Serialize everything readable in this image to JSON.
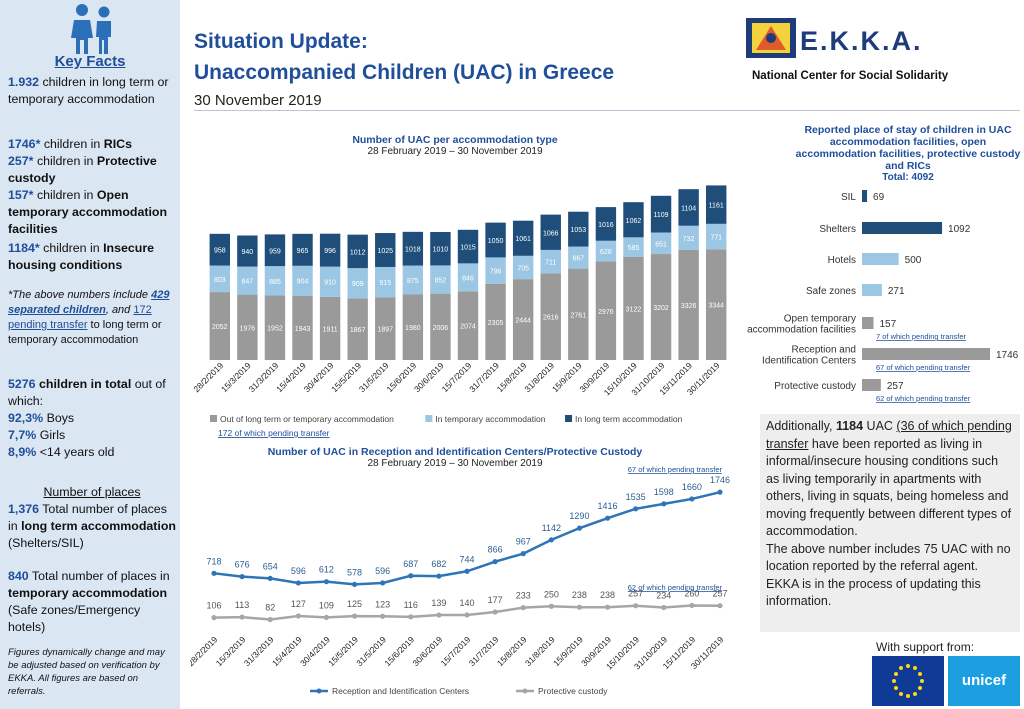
{
  "sidebar": {
    "title": "Key Facts",
    "f1_num": "1.932",
    "f1_text": " children in long term or temporary accommodation",
    "f2_num": "1746*",
    "f2_a": " children in ",
    "f2_b": "RICs",
    "f3_num": "257*",
    "f3_a": " children in ",
    "f3_b": "Protective custody",
    "f4_num": "157*",
    "f4_a": " children in ",
    "f4_b": "Open temporary accommodation facilities",
    "f5_num": "1184*",
    "f5_a": " children in ",
    "f5_b": "Insecure housing conditions",
    "note_a": "*The above numbers include ",
    "note_num1": "429 separated children",
    "note_b": ", and ",
    "note_num2": "172 pending transfer",
    "note_c": " to long term or temporary accommodation",
    "total_num": "5276",
    "total_a": " children in total",
    "total_b": " out of which:",
    "boys_num": "92,3%",
    "boys": " Boys",
    "girls_num": "7,7%",
    "girls": " Girls",
    "young_num": "8,9%",
    "young": " <14 years old",
    "places_title": "Number of places",
    "p1_num": "1,376",
    "p1_a": " Total number of places in ",
    "p1_b": "long term accommodation",
    "p1_c": " (Shelters/SIL)",
    "p2_num": "840",
    "p2_a": " Total number of places in ",
    "p2_b": "temporary accommodation",
    "p2_c": " (Safe zones/Emergency hotels)",
    "footnote": "Figures dynamically change and may be adjusted based on verification by EKKA. All figures are based on referrals."
  },
  "header": {
    "title1": "Situation Update:",
    "title2": "Unaccompanied Children (UAC) in Greece",
    "date": "30 November 2019",
    "logo": "E.K.K.A.",
    "logo_sub": "National Center for Social Solidarity"
  },
  "colors": {
    "dark_blue": "#1f4e7a",
    "light_blue": "#9cc7e4",
    "grey": "#9a9a9a",
    "line_blue": "#2e75b6",
    "line_grey": "#a6a6a6"
  },
  "chart_data": [
    {
      "type": "bar",
      "title": "Number of UAC per accommodation type",
      "subtitle": "28 February 2019 – 30 November 2019",
      "categories": [
        "28/2/2019",
        "15/3/2019",
        "31/3/2019",
        "15/4/2019",
        "30/4/2019",
        "15/5/2019",
        "31/5/2019",
        "15/6/2019",
        "30/6/2019",
        "15/7/2019",
        "31/7/2019",
        "15/8/2019",
        "31/8/2019",
        "15/9/2019",
        "30/9/2019",
        "15/10/2019",
        "31/10/2019",
        "15/11/2019",
        "30/11/2019"
      ],
      "series": [
        {
          "name": "Out of long term or temporary accommodation",
          "values": [
            2052,
            1976,
            1952,
            1943,
            1911,
            1867,
            1897,
            1980,
            2006,
            2074,
            2305,
            2444,
            2616,
            2761,
            2976,
            3122,
            3202,
            3326,
            3344
          ]
        },
        {
          "name": "In temporary accommodation",
          "values": [
            803,
            847,
            885,
            904,
            910,
            909,
            915,
            875,
            852,
            846,
            796,
            705,
            711,
            667,
            628,
            585,
            651,
            732,
            771
          ]
        },
        {
          "name": "In long term accommodation",
          "values": [
            958,
            940,
            959,
            965,
            996,
            1012,
            1025,
            1018,
            1010,
            1015,
            1050,
            1061,
            1066,
            1053,
            1016,
            1062,
            1109,
            1104,
            1161
          ]
        }
      ],
      "stacked": true,
      "legend": "bottom",
      "note": "172 of which pending transfer"
    },
    {
      "type": "bar",
      "title": "Reported place of stay of children in UAC accommodation facilities, open accommodation facilities, protective custody and RICs",
      "subtitle": "Total: 4092",
      "orientation": "horizontal",
      "categories": [
        "SIL",
        "Shelters",
        "Hotels",
        "Safe zones",
        "Open temporary accommodation facilities",
        "Reception and Identification Centers",
        "Protective custody"
      ],
      "values": [
        69,
        1092,
        500,
        271,
        157,
        1746,
        257
      ],
      "labels": [
        "69",
        "1092",
        "500",
        "271",
        "157",
        "1746",
        "257"
      ],
      "annotations": [
        "7 of which pending transfer",
        "67 of which pending transfer",
        "62 of which pending transfer"
      ]
    },
    {
      "type": "line",
      "title": "Number of UAC in Reception and Identification Centers/Protective Custody",
      "subtitle": "28 February 2019 – 30 November 2019",
      "categories": [
        "28/2/2019",
        "15/3/2019",
        "31/3/2019",
        "15/4/2019",
        "30/4/2019",
        "15/5/2019",
        "31/5/2019",
        "15/6/2019",
        "30/6/2019",
        "15/7/2019",
        "31/7/2019",
        "15/8/2019",
        "31/8/2019",
        "15/9/2019",
        "30/9/2019",
        "15/10/2019",
        "31/10/2019",
        "15/11/2019",
        "30/11/2019"
      ],
      "series": [
        {
          "name": "Reception and Identification Centers",
          "values": [
            718,
            676,
            654,
            596,
            612,
            578,
            596,
            687,
            682,
            744,
            866,
            967,
            1142,
            1290,
            1416,
            1535,
            1598,
            1660,
            1746
          ]
        },
        {
          "name": "Protective custody",
          "values": [
            106,
            113,
            82,
            127,
            109,
            125,
            123,
            116,
            139,
            140,
            177,
            233,
            250,
            238,
            238,
            257,
            234,
            260,
            257
          ]
        }
      ],
      "annotations": [
        "67 of which pending transfer",
        "62 of which pending transfer"
      ],
      "legend": "bottom"
    }
  ],
  "infobox": {
    "a": "Additionally, ",
    "num": "1184",
    "b": " UAC ",
    "c": "(36 of which pending transfer",
    "d": " have been reported as living in informal/insecure housing conditions such as living temporarily in apartments with others, living in squats, being homeless and moving frequently between different types of accommodation.",
    "e": "The above number includes 75 UAC with no location reported by the referral agent. EKKA is in the process of updating this information."
  },
  "support": {
    "label": "With support from:",
    "unicef": "unicef"
  }
}
